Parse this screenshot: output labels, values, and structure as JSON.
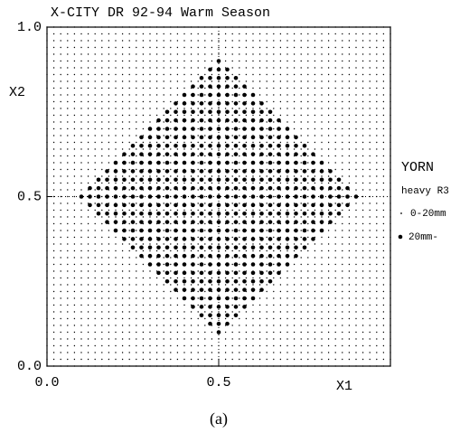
{
  "chart_data": {
    "type": "scatter",
    "title": "X-CITY DR 92-94 Warm Season",
    "xlabel": "X1",
    "ylabel": "X2",
    "xlim": [
      0,
      1
    ],
    "ylim": [
      0,
      1
    ],
    "xticks": [
      {
        "value": 0,
        "label": "0.0"
      },
      {
        "value": 0.5,
        "label": "0.5"
      }
    ],
    "yticks": [
      {
        "value": 0,
        "label": "0.0"
      },
      {
        "value": 0.5,
        "label": "0.5"
      },
      {
        "value": 1,
        "label": "1.0"
      }
    ],
    "grid_step": 0.02,
    "diamond": {
      "center": [
        0.5,
        0.5
      ],
      "radius": 0.4,
      "step": 0.025
    },
    "legend": {
      "title": "YORN",
      "subtitle": "heavy R3",
      "entries": [
        "0-20mm",
        "20mm-"
      ]
    },
    "caption": "(a)",
    "color": "#000000"
  }
}
